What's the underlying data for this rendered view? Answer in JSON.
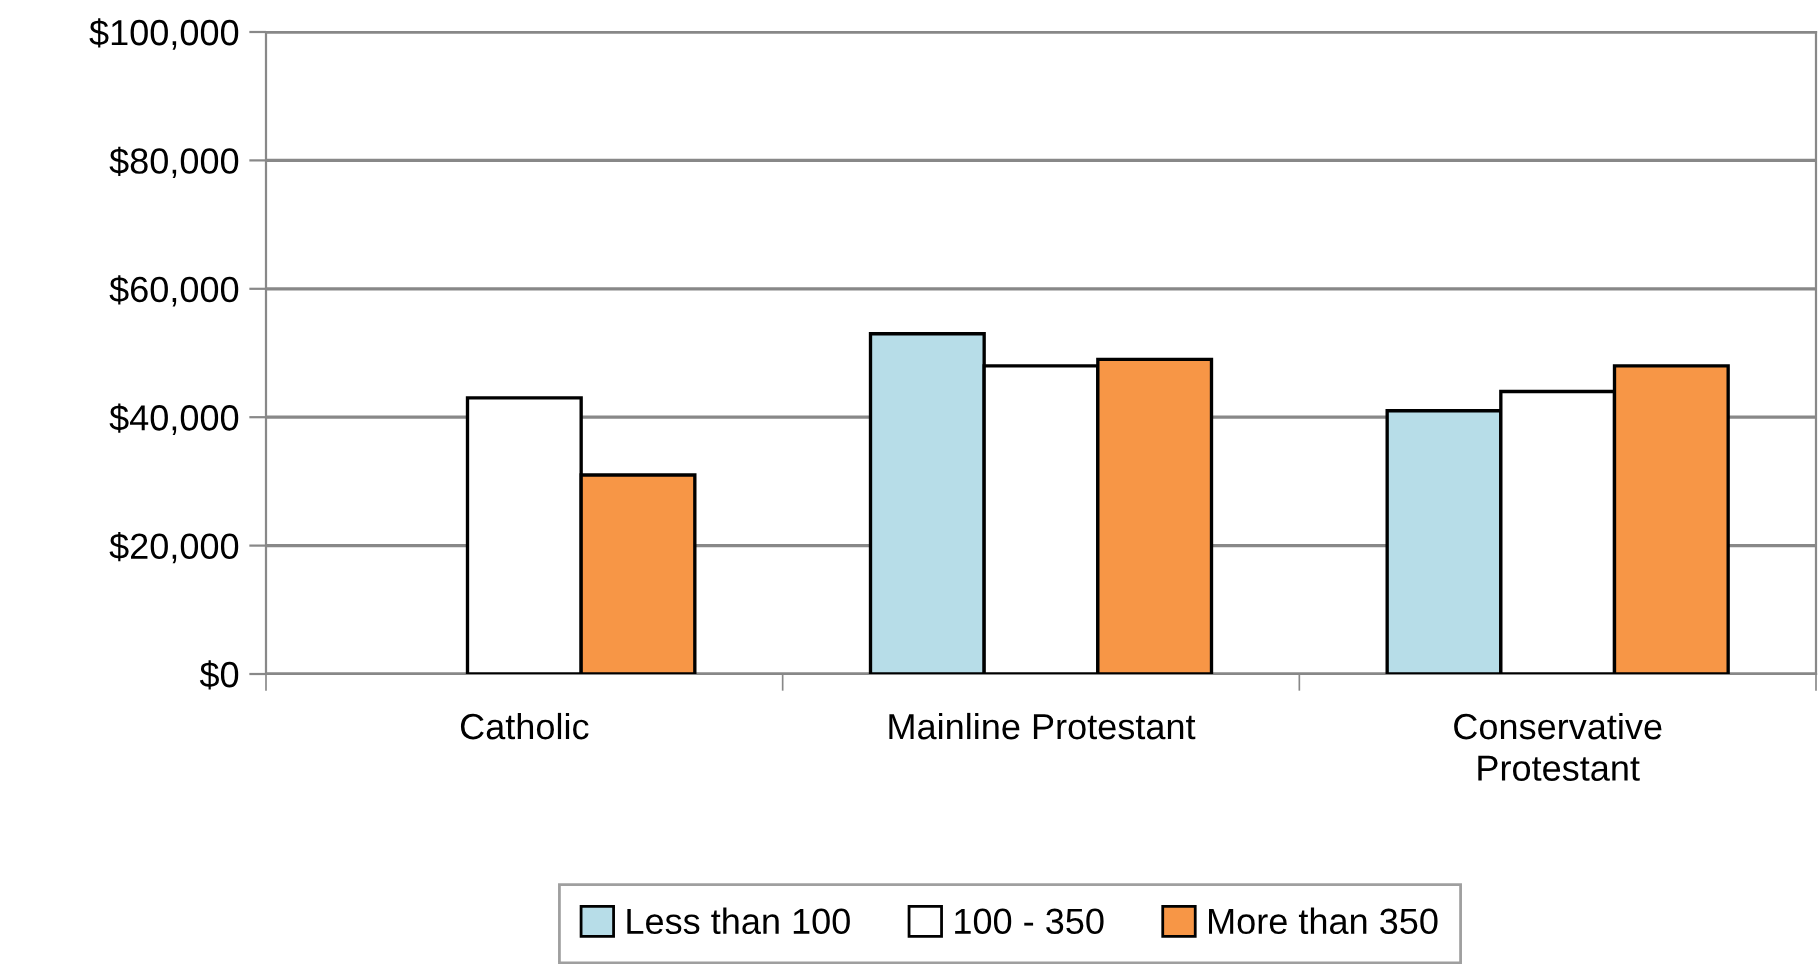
{
  "chart_data": {
    "type": "bar",
    "categories": [
      "Catholic",
      "Mainline Protestant",
      "Conservative\nProtestant"
    ],
    "series": [
      {
        "name": "Less than 100",
        "color": "#b7dde8",
        "values": [
          null,
          53000,
          41000
        ]
      },
      {
        "name": "100 - 350",
        "color": "#ffffff",
        "values": [
          43000,
          48000,
          44000
        ]
      },
      {
        "name": "More than 350",
        "color": "#f79646",
        "values": [
          31000,
          49000,
          48000
        ]
      }
    ],
    "ylim": [
      0,
      100000
    ],
    "yticks": [
      {
        "value": 0,
        "label": "$0"
      },
      {
        "value": 20000,
        "label": "$20,000"
      },
      {
        "value": 40000,
        "label": "$40,000"
      },
      {
        "value": 60000,
        "label": "$60,000"
      },
      {
        "value": 80000,
        "label": "$80,000"
      },
      {
        "value": 100000,
        "label": "$100,000"
      }
    ],
    "grid": "y",
    "legend": "bottom"
  }
}
